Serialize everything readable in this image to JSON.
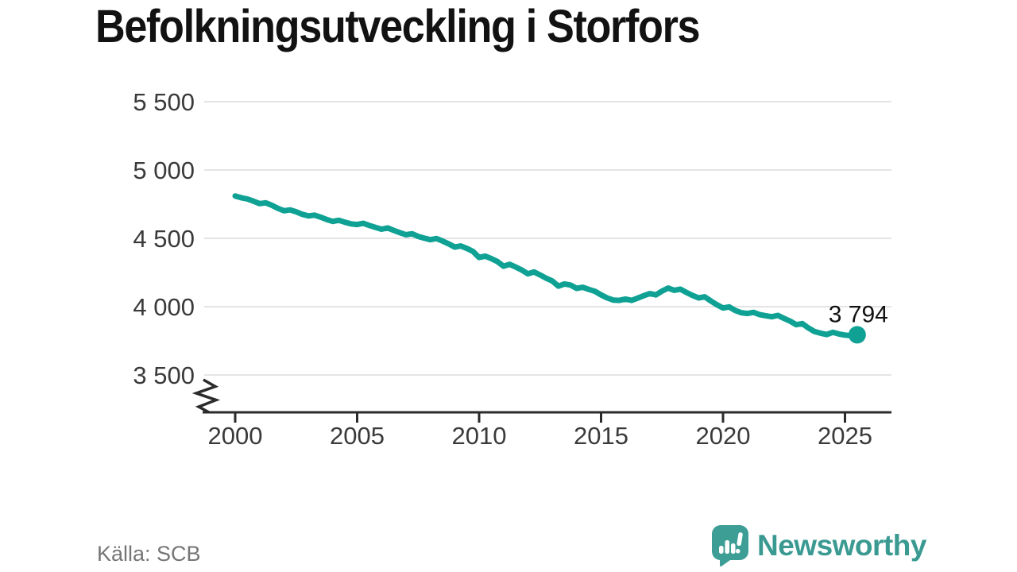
{
  "title": "Befolkningsutveckling i Storfors",
  "source": {
    "text": "Källa: SCB"
  },
  "logo": {
    "text": "Newsworthy",
    "icon": "newsworthy-speech-bubble-bar-chart-icon",
    "color": "#3d9e96"
  },
  "chart_data": {
    "type": "line",
    "title": "Befolkningsutveckling i Storfors",
    "xlabel": "",
    "ylabel": "",
    "x_start": 2000,
    "x_step": 0.25,
    "series": [
      {
        "color": "#0fa294",
        "values": [
          4810,
          4797,
          4788,
          4772,
          4754,
          4760,
          4742,
          4720,
          4702,
          4708,
          4694,
          4676,
          4664,
          4670,
          4655,
          4638,
          4624,
          4632,
          4618,
          4606,
          4601,
          4610,
          4594,
          4580,
          4567,
          4576,
          4558,
          4542,
          4526,
          4534,
          4514,
          4502,
          4490,
          4498,
          4480,
          4460,
          4436,
          4444,
          4426,
          4404,
          4360,
          4370,
          4352,
          4330,
          4296,
          4310,
          4290,
          4268,
          4240,
          4254,
          4232,
          4208,
          4188,
          4150,
          4166,
          4158,
          4134,
          4142,
          4126,
          4112,
          4086,
          4064,
          4048,
          4046,
          4056,
          4046,
          4062,
          4080,
          4096,
          4086,
          4114,
          4136,
          4120,
          4128,
          4104,
          4082,
          4064,
          4072,
          4042,
          4014,
          3990,
          3998,
          3972,
          3956,
          3950,
          3958,
          3942,
          3934,
          3926,
          3936,
          3914,
          3894,
          3868,
          3876,
          3844,
          3818,
          3806,
          3796,
          3812,
          3800,
          3792,
          3788,
          3794
        ]
      }
    ],
    "x_ticks": [
      {
        "value": 2000,
        "label": "2000"
      },
      {
        "value": 2005,
        "label": "2005"
      },
      {
        "value": 2010,
        "label": "2010"
      },
      {
        "value": 2015,
        "label": "2015"
      },
      {
        "value": 2020,
        "label": "2020"
      },
      {
        "value": 2025,
        "label": "2025"
      }
    ],
    "y_ticks": [
      {
        "value": 3500,
        "label": "3 500"
      },
      {
        "value": 4000,
        "label": "4 000"
      },
      {
        "value": 4500,
        "label": "4 500"
      },
      {
        "value": 5000,
        "label": "5 000"
      },
      {
        "value": 5500,
        "label": "5 500"
      }
    ],
    "ylim": [
      3500,
      5500
    ],
    "grid": "horizontal",
    "legend": "none",
    "y_axis_break": true,
    "last_point": {
      "value": 3794,
      "label": "3 794",
      "marker": "filled-circle"
    }
  }
}
